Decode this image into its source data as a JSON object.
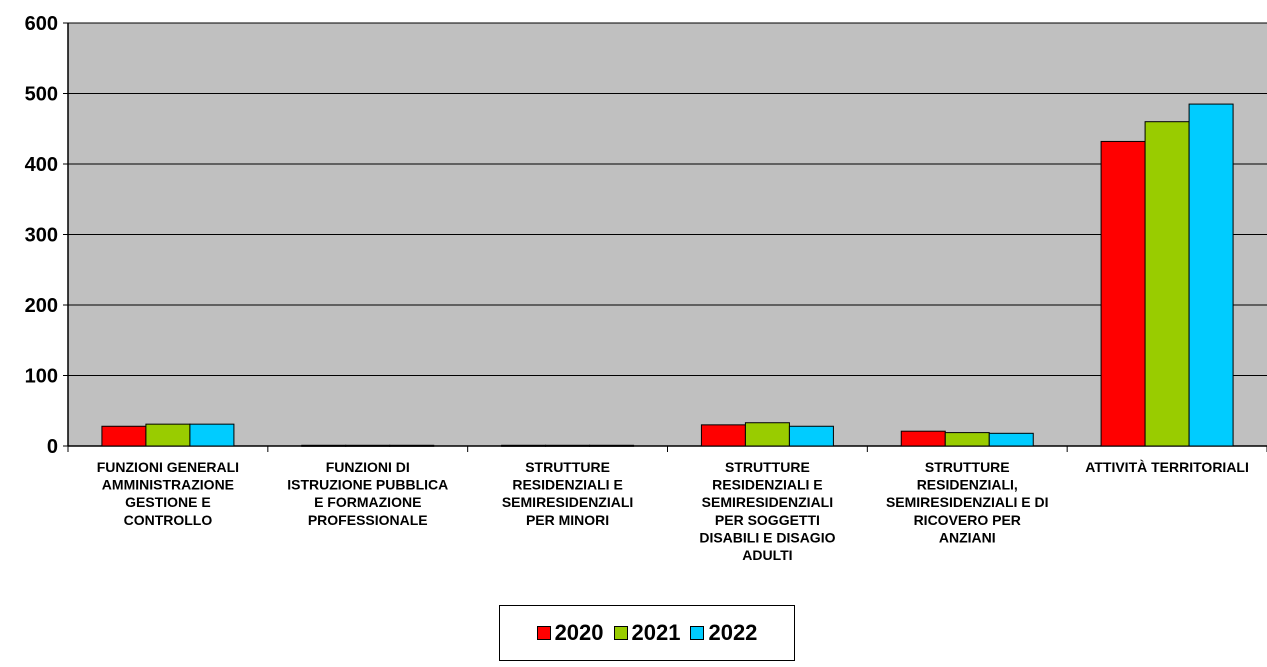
{
  "chart_data": {
    "type": "bar",
    "categories": [
      [
        "FUNZIONI GENERALI",
        "AMMINISTRAZIONE",
        "GESTIONE  E",
        "CONTROLLO"
      ],
      [
        "FUNZIONI DI",
        "ISTRUZIONE PUBBLICA",
        "E FORMAZIONE",
        "PROFESSIONALE"
      ],
      [
        "STRUTTURE",
        "RESIDENZIALI E",
        "SEMIRESIDENZIALI",
        "PER MINORI"
      ],
      [
        "STRUTTURE",
        "RESIDENZIALI E",
        "SEMIRESIDENZIALI",
        "PER SOGGETTI",
        "DISABILI E DISAGIO",
        "ADULTI"
      ],
      [
        "STRUTTURE",
        "RESIDENZIALI,",
        "SEMIRESIDENZIALI E DI",
        "RICOVERO PER",
        "ANZIANI"
      ],
      [
        "ATTIVITÀ TERRITORIALI"
      ]
    ],
    "series": [
      {
        "name": "2020",
        "color": "#ff0000",
        "values": [
          28,
          1,
          1,
          30,
          21,
          432
        ]
      },
      {
        "name": "2021",
        "color": "#99cc00",
        "values": [
          31,
          1,
          1,
          33,
          19,
          460
        ]
      },
      {
        "name": "2022",
        "color": "#00ccff",
        "values": [
          31,
          1,
          1,
          28,
          18,
          485
        ]
      }
    ],
    "ylim": [
      0,
      600
    ],
    "yticks": [
      0,
      100,
      200,
      300,
      400,
      500,
      600
    ],
    "grid": true,
    "plot_background": "#c0c0c0",
    "legend_position": "bottom-center"
  }
}
